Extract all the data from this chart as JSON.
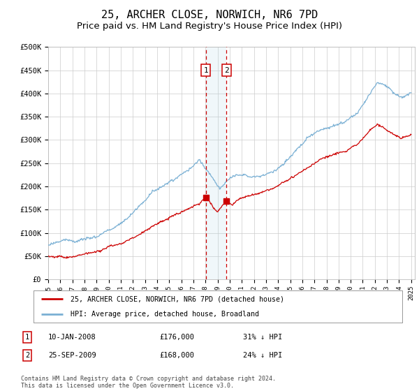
{
  "title": "25, ARCHER CLOSE, NORWICH, NR6 7PD",
  "subtitle": "Price paid vs. HM Land Registry's House Price Index (HPI)",
  "title_fontsize": 11,
  "subtitle_fontsize": 9.5,
  "ylim": [
    0,
    500000
  ],
  "yticks": [
    0,
    50000,
    100000,
    150000,
    200000,
    250000,
    300000,
    350000,
    400000,
    450000,
    500000
  ],
  "ytick_labels": [
    "£0",
    "£50K",
    "£100K",
    "£150K",
    "£200K",
    "£250K",
    "£300K",
    "£350K",
    "£400K",
    "£450K",
    "£500K"
  ],
  "xlim_start": 1995.0,
  "xlim_end": 2025.3,
  "background_color": "#ffffff",
  "plot_bg_color": "#ffffff",
  "grid_color": "#cccccc",
  "hpi_color": "#7ab0d4",
  "price_color": "#cc0000",
  "transaction1_x": 2008.03,
  "transaction1_y": 176000,
  "transaction2_x": 2009.73,
  "transaction2_y": 168000,
  "legend_label_red": "25, ARCHER CLOSE, NORWICH, NR6 7PD (detached house)",
  "legend_label_blue": "HPI: Average price, detached house, Broadland",
  "table_entries": [
    {
      "num": "1",
      "date": "10-JAN-2008",
      "price": "£176,000",
      "hpi": "31% ↓ HPI"
    },
    {
      "num": "2",
      "date": "25-SEP-2009",
      "price": "£168,000",
      "hpi": "24% ↓ HPI"
    }
  ],
  "footnote": "Contains HM Land Registry data © Crown copyright and database right 2024.\nThis data is licensed under the Open Government Licence v3.0.",
  "highlight_x_start": 2008.03,
  "highlight_x_end": 2009.73
}
